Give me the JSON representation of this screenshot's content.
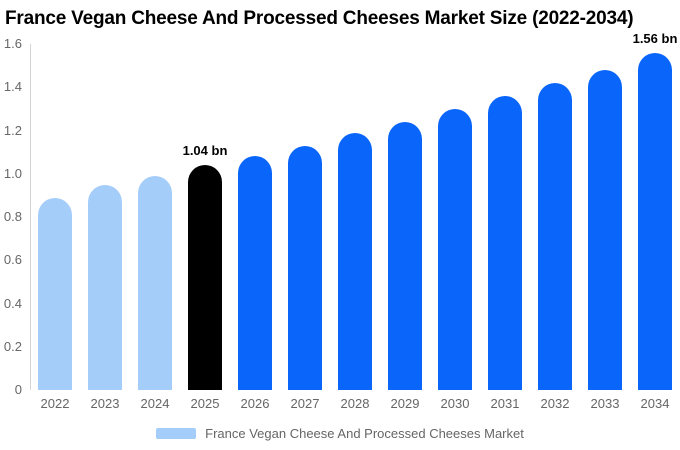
{
  "chart_data": {
    "type": "bar",
    "title": "France Vegan Cheese And Processed Cheeses Market Size (2022-2034)",
    "xlabel": "",
    "ylabel": "",
    "categories": [
      "2022",
      "2023",
      "2024",
      "2025",
      "2026",
      "2027",
      "2028",
      "2029",
      "2030",
      "2031",
      "2032",
      "2033",
      "2034"
    ],
    "values": [
      0.89,
      0.95,
      0.99,
      1.04,
      1.08,
      1.13,
      1.19,
      1.24,
      1.3,
      1.36,
      1.42,
      1.48,
      1.56
    ],
    "unit": "bn",
    "ylim": [
      0,
      1.6
    ],
    "ytick_labels": [
      "0",
      "0.2",
      "0.4",
      "0.6",
      "0.8",
      "1.0",
      "1.2",
      "1.4",
      "1.6"
    ],
    "grid": false,
    "legend_position": "bottom",
    "bar_colors": [
      "#a5cdfa",
      "#a5cdfa",
      "#a5cdfa",
      "#000000",
      "#0a66fa",
      "#0a66fa",
      "#0a66fa",
      "#0a66fa",
      "#0a66fa",
      "#0a66fa",
      "#0a66fa",
      "#0a66fa",
      "#0a66fa"
    ],
    "annotations": [
      {
        "category": "2025",
        "text": "1.04 bn"
      },
      {
        "category": "2034",
        "text": "1.56 bn"
      }
    ],
    "legend": {
      "label": "France Vegan Cheese And Processed Cheeses Market",
      "swatch_color": "#a5cdfa"
    },
    "colors": {
      "light_blue": "#a5cdfa",
      "accent_blue": "#0a66fa",
      "highlight_black": "#000000",
      "axis_line": "#d4d4d4",
      "text_gray": "#666666",
      "title_color": "#000000"
    }
  }
}
